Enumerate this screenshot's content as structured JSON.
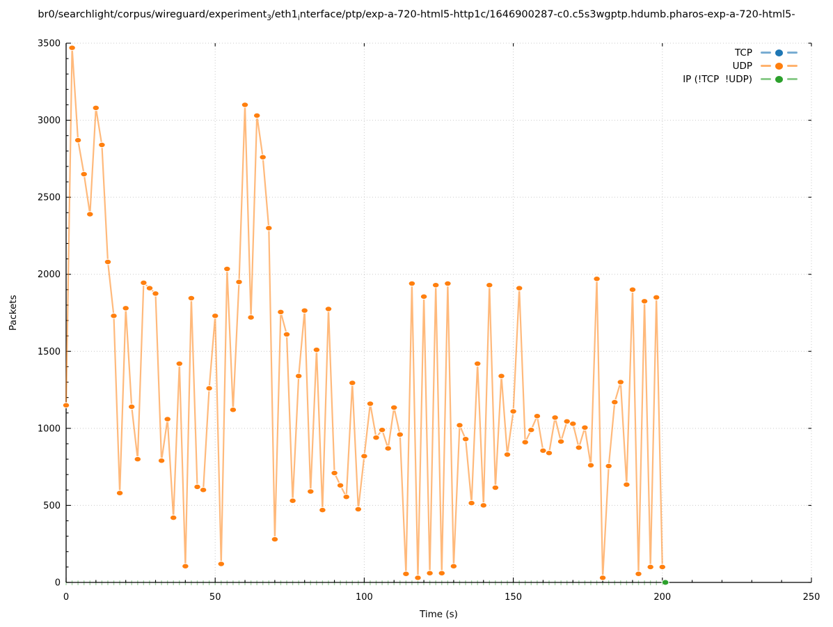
{
  "figure": {
    "title_segments": [
      {
        "text": "br0/searchlight/corpus/wireguard/experiment"
      },
      {
        "text": "3",
        "sub": true
      },
      {
        "text": "/eth1"
      },
      {
        "text": "i",
        "sub": true
      },
      {
        "text": "nterface/ptp/exp-a-720-html5-http1c/1646900287-c0.c5s3wgptp.hdumb.pharos-exp-a-720-html5-"
      }
    ],
    "x_axis": {
      "label": "Time (s)",
      "ticks": [
        0,
        50,
        100,
        150,
        200,
        250
      ],
      "minor_step": 10
    },
    "y_axis": {
      "label": "Packets",
      "ticks": [
        0,
        500,
        1000,
        1500,
        2000,
        2500,
        3000,
        3500
      ],
      "minor_step": 100
    },
    "legend": [
      {
        "label": "TCP",
        "dot_color": "#1f77b4",
        "line_color": "rgba(31,119,180,0.6)"
      },
      {
        "label": "UDP",
        "dot_color": "#ff7f0e",
        "line_color": "rgba(255,127,14,0.6)"
      },
      {
        "label": "IP (!TCP  !UDP)",
        "dot_color": "#2ca02c",
        "line_color": "rgba(44,160,44,0.55)"
      }
    ]
  },
  "chart_data": {
    "type": "line",
    "title": "br0/searchlight/corpus/wireguard/experiment_3/eth1_interface/ptp/exp-a-720-html5-http1c/1646900287-c0.c5s3wgptp.hdumb.pharos-exp-a-720-html5-",
    "xlabel": "Time (s)",
    "ylabel": "Packets",
    "xlim": [
      0,
      250
    ],
    "ylim": [
      0,
      3500
    ],
    "grid": true,
    "legend_position": "top-right-inside",
    "series": [
      {
        "name": "TCP",
        "dot_color": "#1f77b4",
        "line_color": "rgba(31,119,180,0.6)",
        "x": [],
        "y": []
      },
      {
        "name": "UDP",
        "dot_color": "#ff7f0e",
        "line_color": "rgba(255,127,14,0.55)",
        "x_start": 0,
        "x_step": 2,
        "y": [
          1150,
          3470,
          2870,
          2650,
          2390,
          3080,
          2840,
          2080,
          1730,
          580,
          1780,
          1140,
          800,
          1945,
          1910,
          1875,
          790,
          1060,
          420,
          1420,
          105,
          1845,
          620,
          600,
          1260,
          1730,
          120,
          2035,
          1120,
          1950,
          3100,
          1720,
          3030,
          2760,
          2300,
          280,
          1755,
          1610,
          530,
          1340,
          1765,
          590,
          1510,
          470,
          1775,
          710,
          630,
          555,
          1295,
          475,
          820,
          1160,
          940,
          990,
          870,
          1135,
          960,
          55,
          1940,
          30,
          1855,
          60,
          1930,
          60,
          1940,
          105,
          1020,
          930,
          515,
          1420,
          500,
          1930,
          615,
          1340,
          830,
          1110,
          1910,
          910,
          990,
          1080,
          855,
          840,
          1070,
          915,
          1045,
          1030,
          875,
          1005,
          760,
          1970,
          30,
          755,
          1170,
          1300,
          635,
          1900,
          55,
          1825,
          100,
          1850,
          100
        ]
      },
      {
        "name": "IP (!TCP  !UDP)",
        "dot_color": "#2ca02c",
        "line_color": "rgba(44,160,44,0.42)",
        "x": [
          201
        ],
        "y": [
          0
        ],
        "baseline_tick_marks": {
          "from": 0,
          "to": 200,
          "step": 2,
          "y": 0
        }
      }
    ]
  }
}
